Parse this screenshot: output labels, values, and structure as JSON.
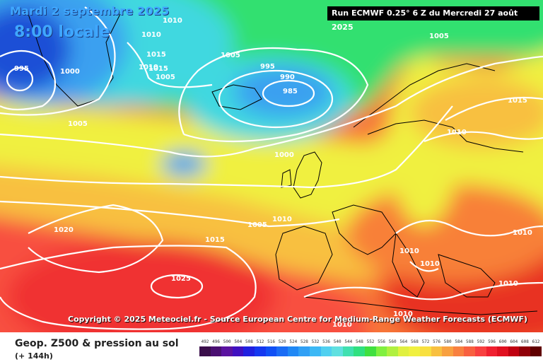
{
  "header": {
    "date": "Mardi 2 septembre 2025",
    "time": "8:00 locale",
    "run": "Run ECMWF 0.25° 6 Z du Mercredi 27 août 2025"
  },
  "copyright": "Copyright © 2025 Meteociel.fr - Source European Centre for Medium-Range Weather Forecasts (ECMWF)",
  "footer": {
    "title": "Geop. Z500 & pression au sol",
    "subtitle": "(+ 144h)"
  },
  "scale": {
    "values": [
      "492",
      "496",
      "500",
      "504",
      "508",
      "512",
      "516",
      "520",
      "524",
      "528",
      "532",
      "536",
      "540",
      "544",
      "548",
      "552",
      "556",
      "560",
      "564",
      "568",
      "572",
      "576",
      "580",
      "584",
      "588",
      "592",
      "596",
      "600",
      "604",
      "608",
      "612"
    ],
    "colors": [
      "#3a0e4a",
      "#4a0f72",
      "#5a12a0",
      "#4010c0",
      "#2020e0",
      "#1538f0",
      "#1050f5",
      "#1a6cf5",
      "#2088f5",
      "#30a0f5",
      "#3cb8f5",
      "#50d0f0",
      "#60e0e0",
      "#40e0b0",
      "#30e080",
      "#40e040",
      "#80f040",
      "#b0f040",
      "#e0f040",
      "#f0f040",
      "#f8e040",
      "#f8c040",
      "#f8a040",
      "#f88040",
      "#f86040",
      "#f84040",
      "#f02030",
      "#e01020",
      "#c00010",
      "#900008",
      "#600000"
    ]
  },
  "map": {
    "isobar_labels": [
      "995",
      "1000",
      "1010",
      "1010",
      "1015",
      "1015",
      "1010",
      "1005",
      "1005",
      "995",
      "990",
      "985",
      "1005",
      "1015",
      "1010",
      "1000",
      "1005",
      "1010",
      "1020",
      "1015",
      "1025",
      "1010",
      "1010",
      "1010",
      "1010",
      "1010",
      "1010",
      "1005",
      "1000",
      "1000"
    ],
    "colors": {
      "low_core": "#1f4fd6",
      "cold_blue": "#3aa0f0",
      "cyan": "#40d8e0",
      "green": "#30e070",
      "yellow_green": "#b8f040",
      "yellow": "#f0f040",
      "orange": "#f8a040",
      "red": "#f04040",
      "deep_red": "#e02020"
    }
  }
}
